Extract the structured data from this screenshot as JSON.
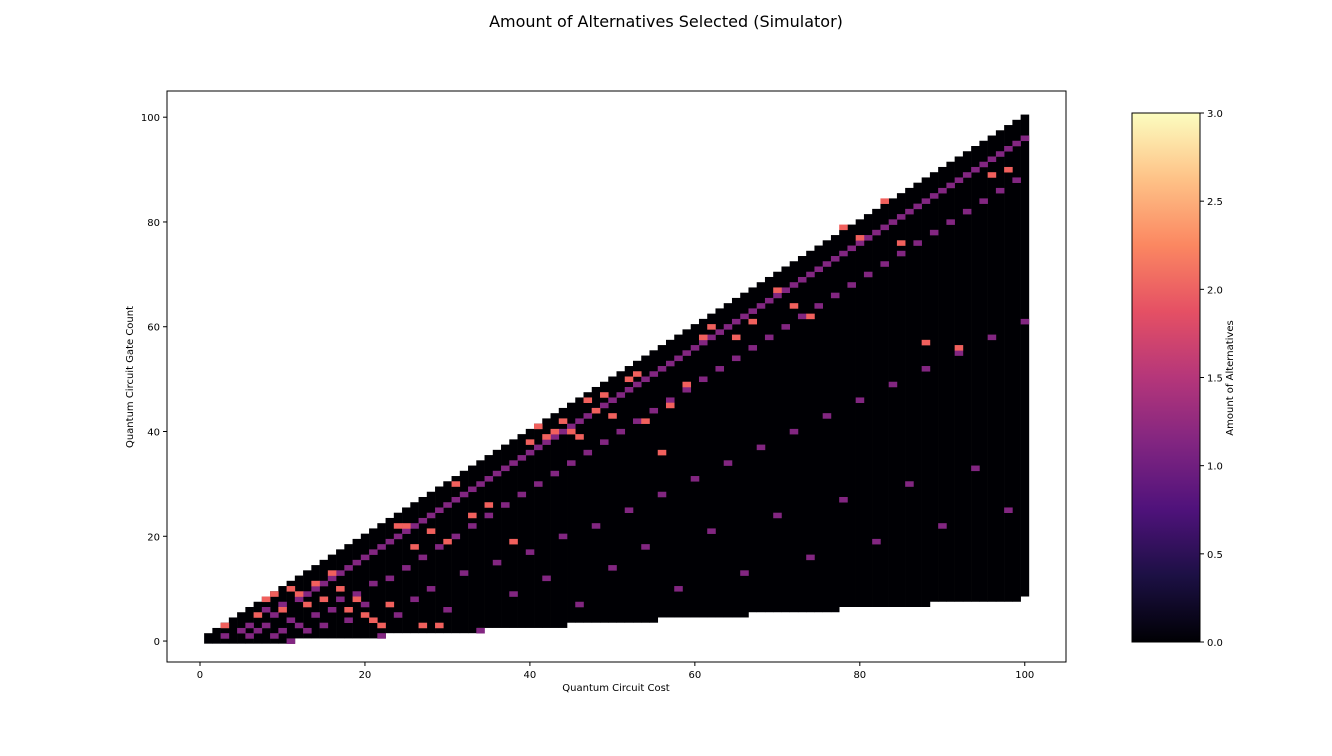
{
  "chart_data": {
    "type": "heatmap",
    "title": "Amount of Alternatives Selected (Simulator)",
    "xlabel": "Quantum Circuit Cost",
    "ylabel": "Quantum Circuit Gate Count",
    "xlim": [
      -4,
      105
    ],
    "ylim": [
      -4,
      105
    ],
    "xticks": [
      0,
      20,
      40,
      60,
      80,
      100
    ],
    "yticks": [
      0,
      20,
      40,
      60,
      80,
      100
    ],
    "grid": false,
    "colormap": "magma",
    "colorbar": {
      "label": "Amount of Alternatives",
      "range": [
        0,
        3
      ],
      "ticks": [
        "0.0",
        "0.5",
        "1.0",
        "1.5",
        "2.0",
        "2.5",
        "3.0"
      ]
    },
    "domain_note_visible": "region where gate count <= cost",
    "cell_values": {
      "background": 0,
      "value_one_cells": [
        [
          3,
          1
        ],
        [
          5,
          2
        ],
        [
          6,
          1
        ],
        [
          6,
          3
        ],
        [
          7,
          2
        ],
        [
          8,
          3
        ],
        [
          8,
          6
        ],
        [
          9,
          1
        ],
        [
          9,
          5
        ],
        [
          10,
          2
        ],
        [
          10,
          7
        ],
        [
          11,
          0
        ],
        [
          11,
          4
        ],
        [
          12,
          3
        ],
        [
          12,
          8
        ],
        [
          13,
          2
        ],
        [
          13,
          9
        ],
        [
          14,
          5
        ],
        [
          14,
          10
        ],
        [
          15,
          3
        ],
        [
          15,
          11
        ],
        [
          16,
          6
        ],
        [
          16,
          12
        ],
        [
          17,
          8
        ],
        [
          17,
          13
        ],
        [
          18,
          4
        ],
        [
          18,
          14
        ],
        [
          19,
          9
        ],
        [
          19,
          15
        ],
        [
          20,
          7
        ],
        [
          20,
          16
        ],
        [
          21,
          11
        ],
        [
          21,
          17
        ],
        [
          22,
          1
        ],
        [
          22,
          18
        ],
        [
          23,
          12
        ],
        [
          23,
          19
        ],
        [
          24,
          5
        ],
        [
          24,
          20
        ],
        [
          25,
          14
        ],
        [
          25,
          21
        ],
        [
          26,
          8
        ],
        [
          26,
          22
        ],
        [
          27,
          16
        ],
        [
          27,
          23
        ],
        [
          28,
          10
        ],
        [
          28,
          24
        ],
        [
          29,
          18
        ],
        [
          29,
          25
        ],
        [
          30,
          6
        ],
        [
          30,
          26
        ],
        [
          31,
          20
        ],
        [
          31,
          27
        ],
        [
          32,
          13
        ],
        [
          32,
          28
        ],
        [
          33,
          22
        ],
        [
          33,
          29
        ],
        [
          34,
          2
        ],
        [
          34,
          30
        ],
        [
          35,
          24
        ],
        [
          35,
          31
        ],
        [
          36,
          15
        ],
        [
          36,
          32
        ],
        [
          37,
          26
        ],
        [
          37,
          33
        ],
        [
          38,
          9
        ],
        [
          38,
          34
        ],
        [
          39,
          28
        ],
        [
          39,
          35
        ],
        [
          40,
          17
        ],
        [
          40,
          36
        ],
        [
          41,
          30
        ],
        [
          41,
          37
        ],
        [
          42,
          12
        ],
        [
          42,
          38
        ],
        [
          43,
          32
        ],
        [
          43,
          39
        ],
        [
          44,
          20
        ],
        [
          44,
          40
        ],
        [
          45,
          34
        ],
        [
          45,
          41
        ],
        [
          46,
          7
        ],
        [
          46,
          42
        ],
        [
          47,
          36
        ],
        [
          47,
          43
        ],
        [
          48,
          22
        ],
        [
          48,
          44
        ],
        [
          49,
          38
        ],
        [
          49,
          45
        ],
        [
          50,
          14
        ],
        [
          50,
          46
        ],
        [
          51,
          40
        ],
        [
          51,
          47
        ],
        [
          52,
          25
        ],
        [
          52,
          48
        ],
        [
          53,
          42
        ],
        [
          53,
          49
        ],
        [
          54,
          18
        ],
        [
          54,
          50
        ],
        [
          55,
          44
        ],
        [
          55,
          51
        ],
        [
          56,
          28
        ],
        [
          56,
          52
        ],
        [
          57,
          46
        ],
        [
          57,
          53
        ],
        [
          58,
          10
        ],
        [
          58,
          54
        ],
        [
          59,
          48
        ],
        [
          59,
          55
        ],
        [
          60,
          31
        ],
        [
          60,
          56
        ],
        [
          61,
          50
        ],
        [
          61,
          57
        ],
        [
          62,
          21
        ],
        [
          62,
          58
        ],
        [
          63,
          52
        ],
        [
          63,
          59
        ],
        [
          64,
          34
        ],
        [
          64,
          60
        ],
        [
          65,
          54
        ],
        [
          65,
          61
        ],
        [
          66,
          13
        ],
        [
          66,
          62
        ],
        [
          67,
          56
        ],
        [
          67,
          63
        ],
        [
          68,
          37
        ],
        [
          68,
          64
        ],
        [
          69,
          58
        ],
        [
          69,
          65
        ],
        [
          70,
          24
        ],
        [
          70,
          66
        ],
        [
          71,
          60
        ],
        [
          71,
          67
        ],
        [
          72,
          40
        ],
        [
          72,
          68
        ],
        [
          73,
          62
        ],
        [
          73,
          69
        ],
        [
          74,
          16
        ],
        [
          74,
          70
        ],
        [
          75,
          64
        ],
        [
          75,
          71
        ],
        [
          76,
          43
        ],
        [
          76,
          72
        ],
        [
          77,
          66
        ],
        [
          77,
          73
        ],
        [
          78,
          27
        ],
        [
          78,
          74
        ],
        [
          79,
          68
        ],
        [
          79,
          75
        ],
        [
          80,
          46
        ],
        [
          80,
          76
        ],
        [
          81,
          70
        ],
        [
          81,
          77
        ],
        [
          82,
          19
        ],
        [
          82,
          78
        ],
        [
          83,
          72
        ],
        [
          83,
          79
        ],
        [
          84,
          49
        ],
        [
          84,
          80
        ],
        [
          85,
          74
        ],
        [
          85,
          81
        ],
        [
          86,
          30
        ],
        [
          86,
          82
        ],
        [
          87,
          76
        ],
        [
          87,
          83
        ],
        [
          88,
          52
        ],
        [
          88,
          84
        ],
        [
          89,
          78
        ],
        [
          89,
          85
        ],
        [
          90,
          22
        ],
        [
          90,
          86
        ],
        [
          91,
          80
        ],
        [
          91,
          87
        ],
        [
          92,
          55
        ],
        [
          92,
          88
        ],
        [
          93,
          82
        ],
        [
          93,
          89
        ],
        [
          94,
          33
        ],
        [
          94,
          90
        ],
        [
          95,
          84
        ],
        [
          95,
          91
        ],
        [
          96,
          58
        ],
        [
          96,
          92
        ],
        [
          97,
          86
        ],
        [
          97,
          93
        ],
        [
          98,
          25
        ],
        [
          98,
          94
        ],
        [
          99,
          88
        ],
        [
          99,
          95
        ],
        [
          100,
          61
        ],
        [
          100,
          96
        ]
      ],
      "value_two_cells": [
        [
          3,
          3
        ],
        [
          7,
          5
        ],
        [
          8,
          8
        ],
        [
          9,
          9
        ],
        [
          10,
          6
        ],
        [
          11,
          10
        ],
        [
          12,
          9
        ],
        [
          13,
          7
        ],
        [
          14,
          11
        ],
        [
          15,
          8
        ],
        [
          16,
          13
        ],
        [
          17,
          10
        ],
        [
          18,
          6
        ],
        [
          19,
          8
        ],
        [
          20,
          5
        ],
        [
          21,
          4
        ],
        [
          22,
          3
        ],
        [
          23,
          7
        ],
        [
          24,
          22
        ],
        [
          25,
          22
        ],
        [
          26,
          18
        ],
        [
          27,
          3
        ],
        [
          28,
          21
        ],
        [
          29,
          3
        ],
        [
          30,
          19
        ],
        [
          31,
          30
        ],
        [
          33,
          24
        ],
        [
          35,
          26
        ],
        [
          38,
          19
        ],
        [
          40,
          38
        ],
        [
          41,
          41
        ],
        [
          42,
          39
        ],
        [
          43,
          40
        ],
        [
          44,
          42
        ],
        [
          45,
          40
        ],
        [
          46,
          39
        ],
        [
          47,
          46
        ],
        [
          48,
          44
        ],
        [
          49,
          47
        ],
        [
          50,
          43
        ],
        [
          52,
          50
        ],
        [
          53,
          51
        ],
        [
          54,
          42
        ],
        [
          56,
          36
        ],
        [
          57,
          45
        ],
        [
          59,
          49
        ],
        [
          61,
          58
        ],
        [
          62,
          60
        ],
        [
          65,
          58
        ],
        [
          67,
          61
        ],
        [
          70,
          67
        ],
        [
          72,
          64
        ],
        [
          74,
          62
        ],
        [
          78,
          79
        ],
        [
          80,
          77
        ],
        [
          83,
          84
        ],
        [
          85,
          76
        ],
        [
          88,
          57
        ],
        [
          92,
          56
        ],
        [
          96,
          89
        ],
        [
          98,
          90
        ]
      ]
    }
  }
}
